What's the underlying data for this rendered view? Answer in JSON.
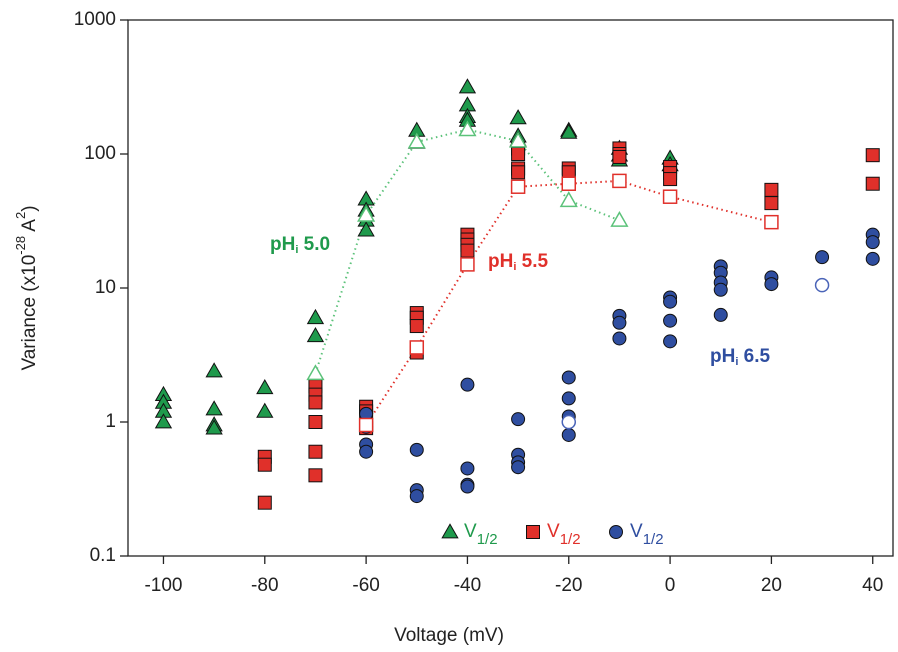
{
  "chart_data": {
    "type": "scatter",
    "ylabel_parts": [
      "Variance (x10",
      "-28",
      " A",
      "2",
      ")"
    ],
    "xlabel": "Voltage (mV)",
    "xlim": [
      -107,
      44
    ],
    "xticks": [
      -100,
      -80,
      -60,
      -40,
      -20,
      0,
      20,
      40
    ],
    "ylim": [
      0.1,
      1000
    ],
    "yticks": [
      0.1,
      1,
      10,
      100,
      1000
    ],
    "log_y": true,
    "legend": "bottom",
    "series": [
      {
        "name": "V",
        "name_subscript": "1/2",
        "color": "#1f9a4c",
        "marker": "triangle",
        "filled": true,
        "x": [
          -100,
          -100,
          -100,
          -100,
          -90,
          -90,
          -90,
          -90,
          -80,
          -80,
          -70,
          -70,
          -60,
          -60,
          -60,
          -60,
          -50,
          -50,
          -40,
          -40,
          -40,
          -40,
          -30,
          -30,
          -30,
          -20,
          -20,
          -10,
          -10,
          -10,
          0,
          0
        ],
        "values": [
          1.6,
          1.4,
          1.2,
          1.0,
          2.4,
          1.25,
          0.95,
          0.9,
          1.8,
          1.2,
          6.0,
          4.4,
          46,
          38,
          32,
          27,
          150,
          122,
          316,
          232,
          190,
          178,
          186,
          136,
          127,
          150,
          145,
          110,
          98,
          90,
          93,
          83
        ]
      },
      {
        "name": "V",
        "name_subscript": "1/2",
        "color": "#e0302a",
        "marker": "square",
        "filled": true,
        "x": [
          -80,
          -80,
          -80,
          -70,
          -70,
          -70,
          -70,
          -70,
          -70,
          -60,
          -60,
          -60,
          -60,
          -50,
          -50,
          -50,
          -50,
          -40,
          -40,
          -40,
          -40,
          -30,
          -30,
          -30,
          -30,
          -20,
          -20,
          -10,
          -10,
          -10,
          0,
          0,
          0,
          20,
          20,
          40,
          40
        ],
        "values": [
          0.55,
          0.48,
          0.25,
          1.85,
          1.6,
          1.4,
          1.0,
          0.6,
          0.4,
          1.3,
          1.2,
          0.95,
          0.9,
          6.5,
          6.0,
          5.2,
          3.3,
          25,
          23,
          21,
          19,
          110,
          100,
          78,
          73,
          78,
          73,
          110,
          100,
          95,
          80,
          72,
          65,
          54,
          43,
          98,
          60
        ]
      },
      {
        "name": "V",
        "name_subscript": "1/2",
        "color": "#2f4ea0",
        "marker": "circle",
        "filled": true,
        "x": [
          -60,
          -60,
          -60,
          -60,
          -50,
          -50,
          -50,
          -40,
          -40,
          -40,
          -40,
          -30,
          -30,
          -30,
          -30,
          -20,
          -20,
          -20,
          -20,
          -10,
          -10,
          -10,
          0,
          0,
          0,
          0,
          10,
          10,
          10,
          10,
          10,
          20,
          20,
          30,
          40,
          40,
          40
        ],
        "values": [
          1.15,
          0.92,
          0.68,
          0.6,
          0.62,
          0.31,
          0.28,
          1.9,
          0.45,
          0.34,
          0.33,
          1.05,
          0.57,
          0.5,
          0.46,
          2.15,
          1.5,
          1.1,
          0.8,
          6.2,
          5.5,
          4.2,
          8.5,
          7.9,
          5.7,
          4.0,
          14.5,
          13,
          11,
          9.7,
          6.3,
          12,
          10.7,
          17,
          25,
          22,
          16.5
        ]
      },
      {
        "color": "#5cc27a",
        "marker": "triangle",
        "filled": false,
        "line": "dotted",
        "x": [
          -70,
          -60,
          -50,
          -40,
          -30,
          -20,
          -10
        ],
        "values": [
          2.3,
          35,
          123,
          152,
          125,
          45,
          32
        ]
      },
      {
        "color": "#e0302a",
        "marker": "square",
        "filled": false,
        "line": "dotted",
        "x": [
          -60,
          -50,
          -40,
          -30,
          -20,
          -10,
          0,
          20
        ],
        "values": [
          0.95,
          3.6,
          15,
          57,
          60,
          63,
          48,
          31
        ]
      },
      {
        "color": "#4a64b8",
        "marker": "circle",
        "filled": false,
        "x": [
          -20,
          30
        ],
        "values": [
          1.0,
          10.5
        ]
      }
    ],
    "annotations": [
      {
        "text": "pH",
        "subscript": "i",
        "suffix": " 5.0",
        "series": 0
      },
      {
        "text": "pH",
        "subscript": "i",
        "suffix": " 5.5",
        "series": 1
      },
      {
        "text": "pH",
        "subscript": "i",
        "suffix": " 6.5",
        "series": 2
      }
    ]
  }
}
